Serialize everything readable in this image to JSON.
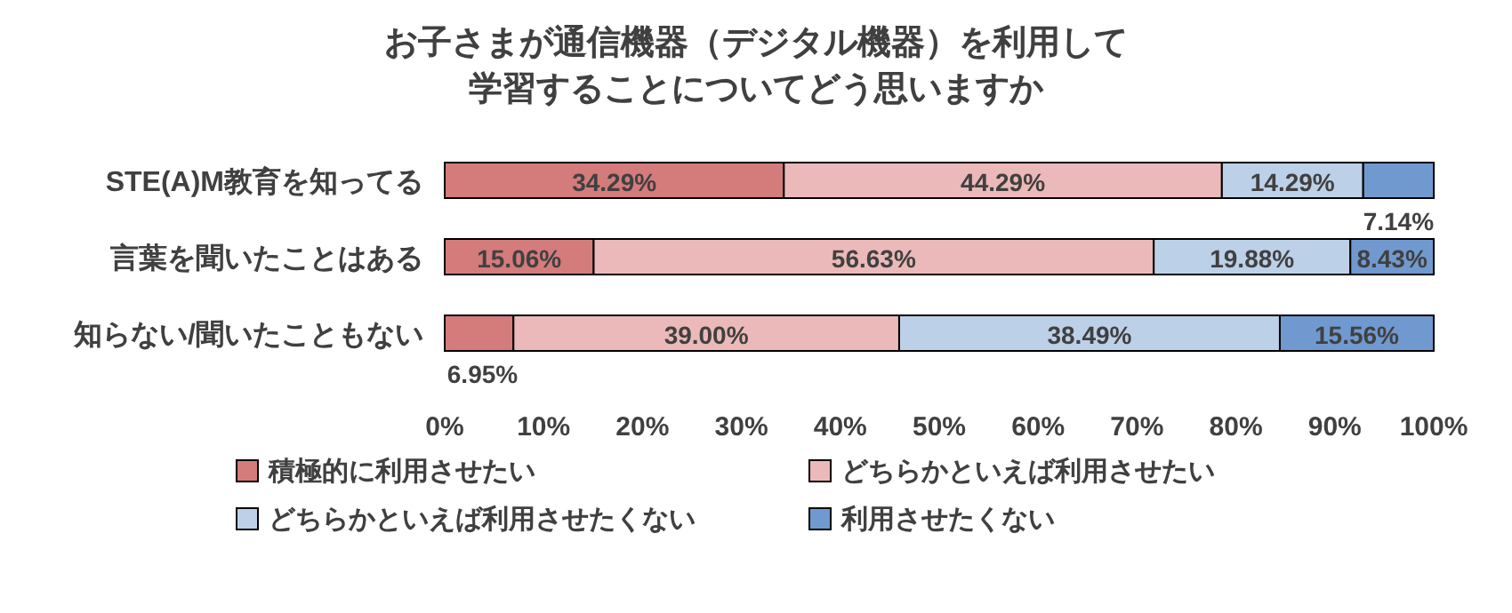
{
  "chart_data": {
    "type": "bar",
    "orientation": "horizontal",
    "stacked": true,
    "title": "お子さまが通信機器（デジタル機器）を利用して学習することについてどう思いますか",
    "categories": [
      "STE(A)M教育を知ってる",
      "言葉を聞いたことはある",
      "知らない/聞いたこともない"
    ],
    "series": [
      {
        "name": "積極的に利用させたい",
        "color": "#d47b7b",
        "values": [
          34.29,
          15.06,
          6.95
        ]
      },
      {
        "name": "どちらかといえば利用させたい",
        "color": "#ebb9b9",
        "values": [
          44.29,
          56.63,
          39.0
        ]
      },
      {
        "name": "どちらかといえば利用させたくない",
        "color": "#bcd0e8",
        "values": [
          14.29,
          19.88,
          38.49
        ]
      },
      {
        "name": "利用させたくない",
        "color": "#7099cf",
        "values": [
          7.14,
          8.43,
          15.56
        ]
      }
    ],
    "value_labels": [
      [
        "34.29%",
        "15.06%",
        "6.95%"
      ],
      [
        "44.29%",
        "56.63%",
        "39.00%"
      ],
      [
        "14.29%",
        "19.88%",
        "38.49%"
      ],
      [
        "7.14%",
        "8.43%",
        "15.56%"
      ]
    ],
    "xlim": [
      0,
      100
    ],
    "xticks": [
      {
        "value": 0,
        "label": "0%"
      },
      {
        "value": 10,
        "label": "10%"
      },
      {
        "value": 20,
        "label": "20%"
      },
      {
        "value": 30,
        "label": "30%"
      },
      {
        "value": 40,
        "label": "40%"
      },
      {
        "value": 50,
        "label": "50%"
      },
      {
        "value": 60,
        "label": "60%"
      },
      {
        "value": 70,
        "label": "70%"
      },
      {
        "value": 80,
        "label": "80%"
      },
      {
        "value": 90,
        "label": "90%"
      },
      {
        "value": 100,
        "label": "100%"
      }
    ],
    "legend": "bottom"
  }
}
